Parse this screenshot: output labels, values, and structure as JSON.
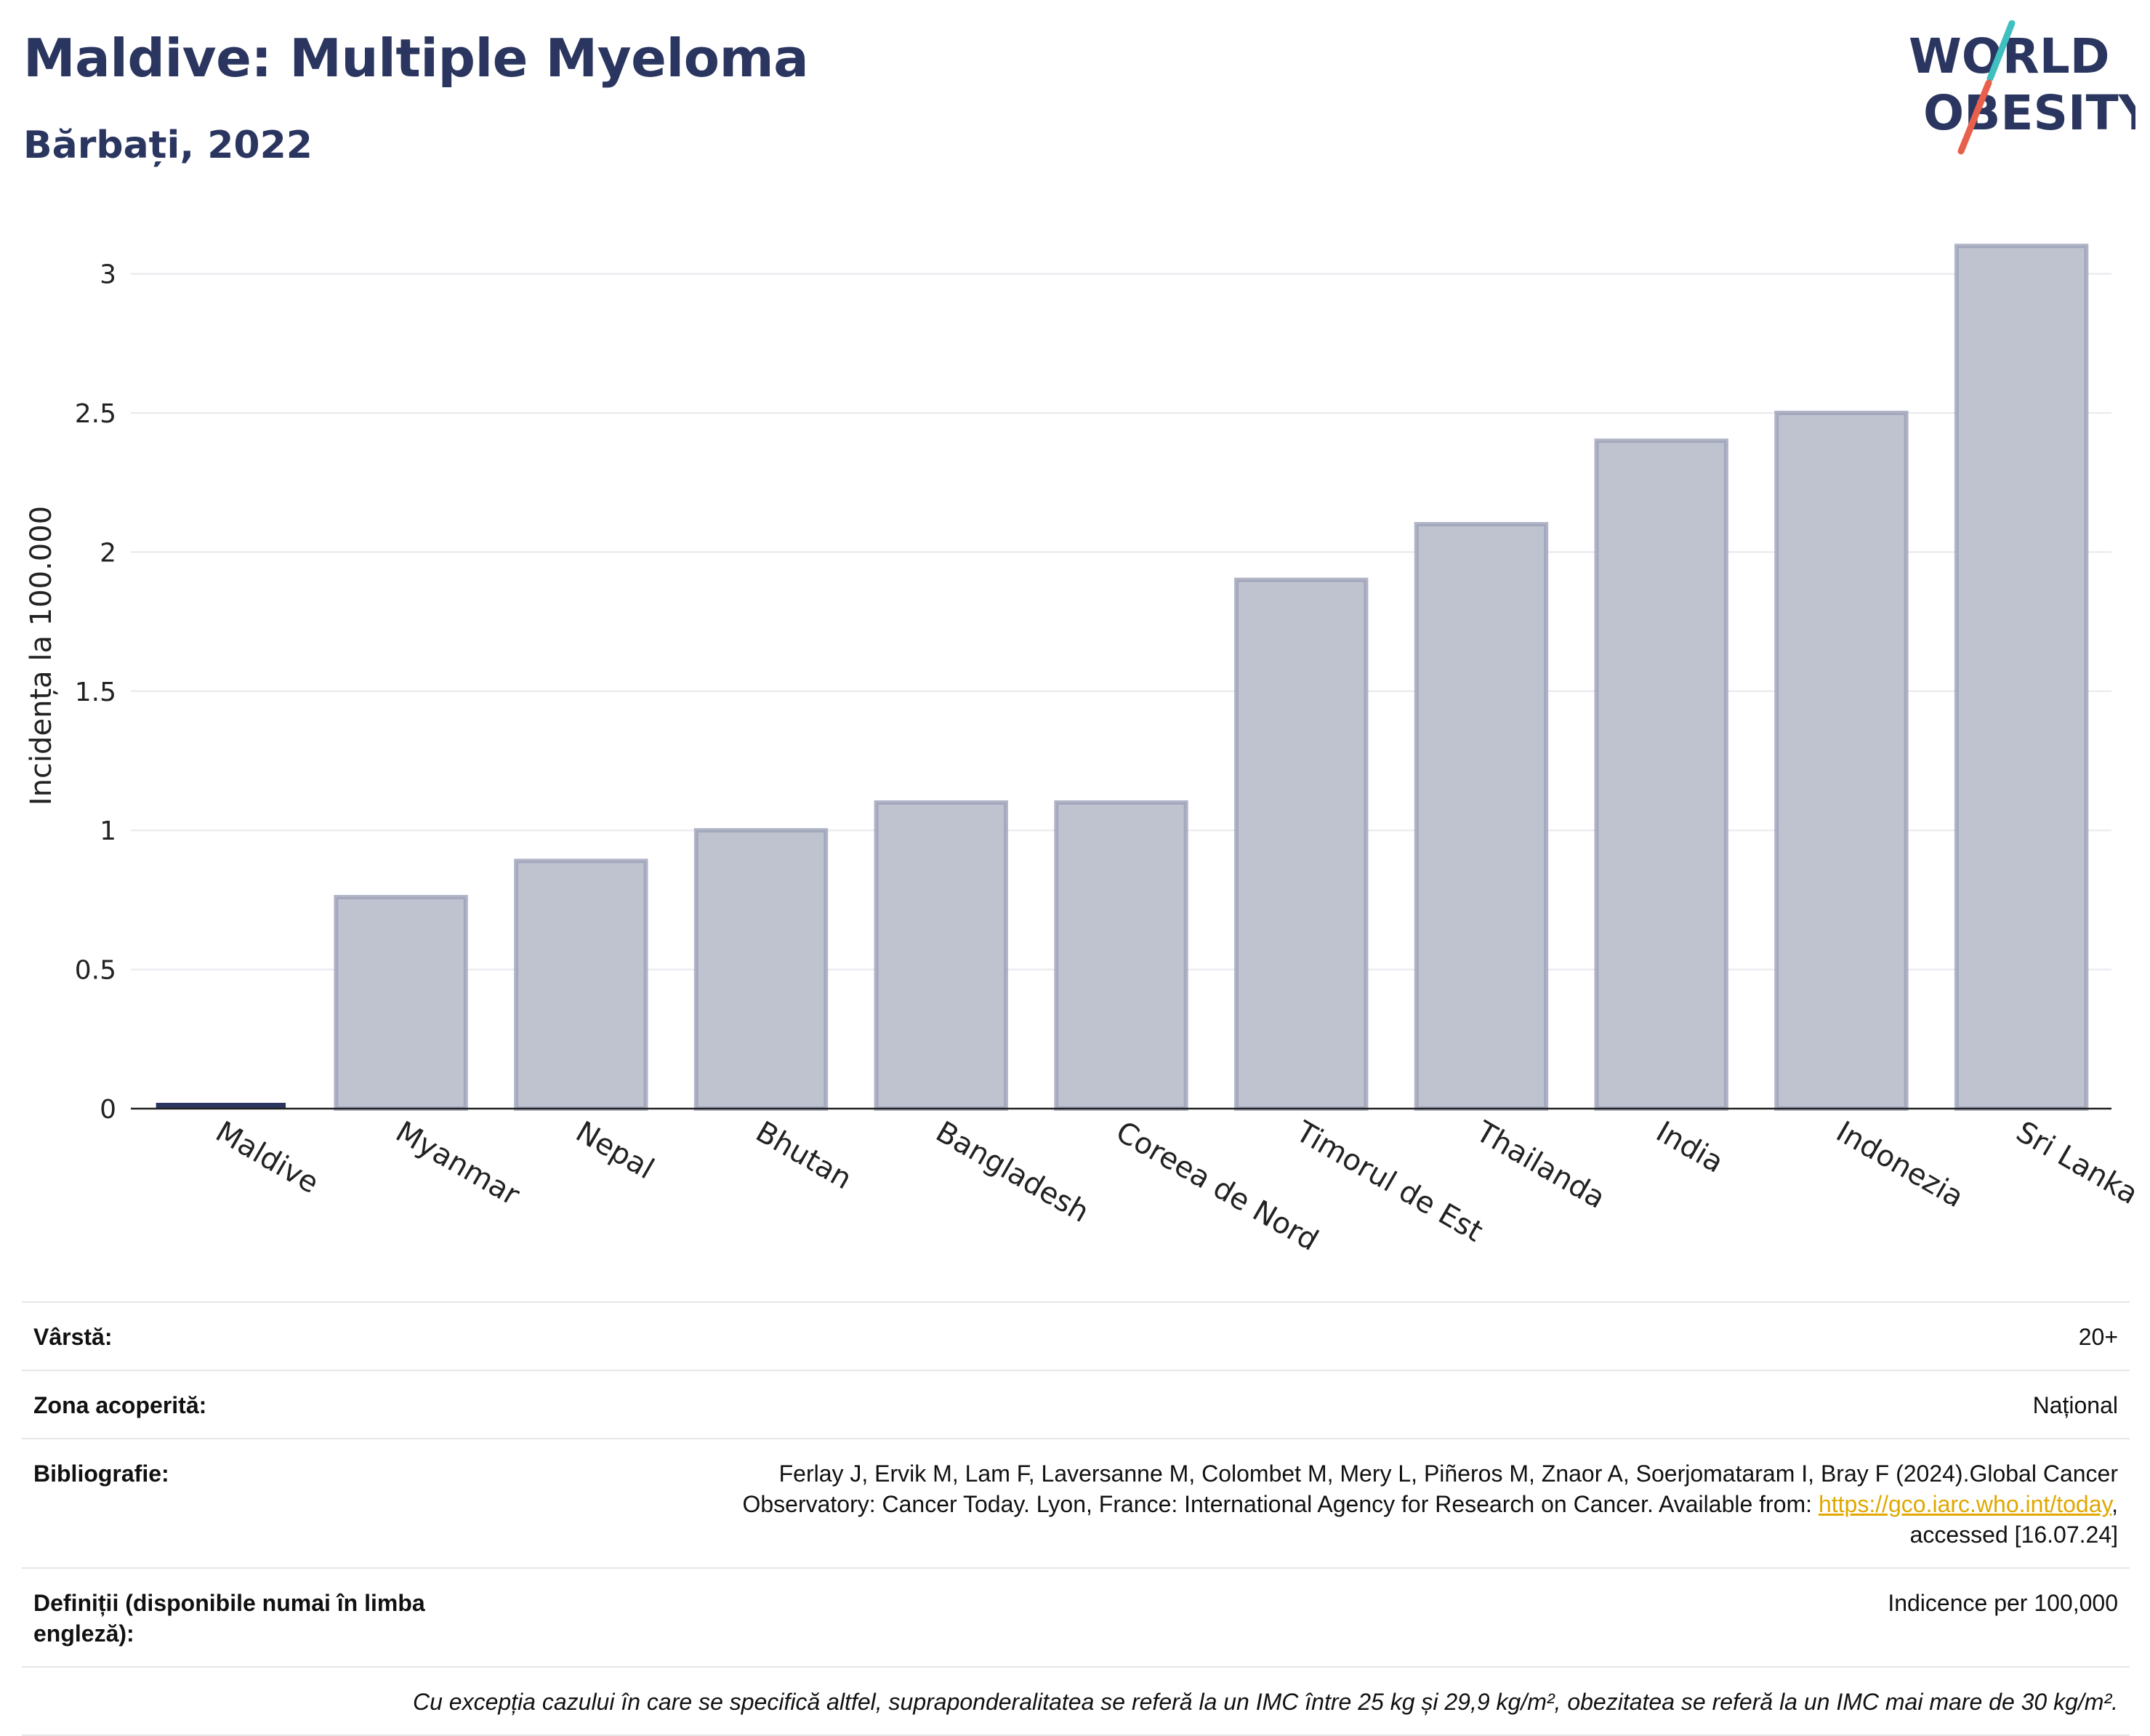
{
  "header": {
    "title": "Maldive: Multiple Myeloma",
    "subtitle": "Bărbați, 2022"
  },
  "logo": {
    "line1": "WORLD",
    "line2": "OBESITY",
    "colors": {
      "text": "#2b3660",
      "slash_teal": "#3fbfbf",
      "slash_red": "#e8604c"
    }
  },
  "chart_data": {
    "type": "bar",
    "ylabel": "Incidența la 100.000",
    "ylim": [
      0,
      3.2
    ],
    "yticks": [
      0,
      0.5,
      1,
      1.5,
      2,
      2.5,
      3
    ],
    "ytick_labels": [
      "0",
      "0.5",
      "1",
      "1.5",
      "2",
      "2.5",
      "3"
    ],
    "categories": [
      "Maldive",
      "Myanmar",
      "Nepal",
      "Bhutan",
      "Bangladesh",
      "Coreea de Nord",
      "Timorul de Est",
      "Thailanda",
      "India",
      "Indonezia",
      "Sri Lanka"
    ],
    "values": [
      0,
      0.76,
      0.89,
      1.0,
      1.1,
      1.1,
      1.9,
      2.1,
      2.4,
      2.5,
      3.1
    ],
    "highlight": "Maldive",
    "colors": {
      "bar_fill": "#bfc3d0",
      "bar_stroke": "#9ca1b8",
      "highlight": "#2b3660",
      "grid": "#e8e8ee"
    },
    "grid": true
  },
  "info": {
    "age_label": "Vârstă:",
    "age_value": "20+",
    "area_label": "Zona acoperită:",
    "area_value": "Național",
    "bib_label": "Bibliografie:",
    "bib_text1": "Ferlay J, Ervik M, Lam F, Laversanne M, Colombet M, Mery L, Piñeros M, Znaor A, Soerjomataram I, Bray F (2024).Global Cancer",
    "bib_text2": "Observatory: Cancer Today. Lyon, France: International Agency for Research on Cancer. Available from: ",
    "bib_link": "https://gco.iarc.who.int/today",
    "bib_text3": ",",
    "bib_text4": "accessed [16.07.24]",
    "def_label": "Definiții (disponibile numai în limba engleză):",
    "def_value": "Indicence per 100,000",
    "note": "Cu excepția cazului în care se specifică altfel, supraponderalitatea se referă la un IMC între 25 kg și 29,9 kg/m², obezitatea se referă la un IMC mai mare de 30 kg/m²."
  }
}
